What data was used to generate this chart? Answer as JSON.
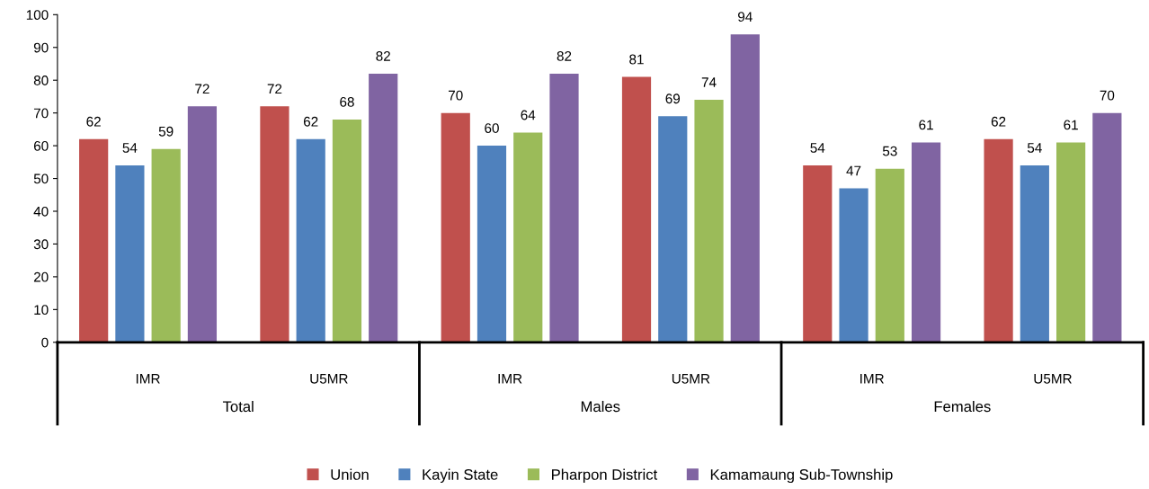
{
  "chart_data": {
    "type": "bar",
    "categories": [
      "IMR",
      "U5MR",
      "IMR",
      "U5MR",
      "IMR",
      "U5MR"
    ],
    "annotations": [
      "Total",
      "Males",
      "Females"
    ],
    "series": [
      {
        "name": "Union",
        "color": "#c0504d",
        "values": [
          62,
          72,
          70,
          81,
          54,
          62
        ]
      },
      {
        "name": "Kayin State",
        "color": "#4f81bd",
        "values": [
          54,
          62,
          60,
          69,
          47,
          54
        ]
      },
      {
        "name": "Pharpon District",
        "color": "#9bbb59",
        "values": [
          59,
          68,
          64,
          74,
          53,
          61
        ]
      },
      {
        "name": "Kamamaung Sub-Township",
        "color": "#8064a2",
        "values": [
          72,
          82,
          82,
          94,
          61,
          70
        ]
      }
    ],
    "ylim": [
      0,
      100
    ],
    "yticks": [
      0,
      10,
      20,
      30,
      40,
      50,
      60,
      70,
      80,
      90,
      100
    ],
    "data_labels": true,
    "grid": false,
    "legend": "bottom"
  }
}
